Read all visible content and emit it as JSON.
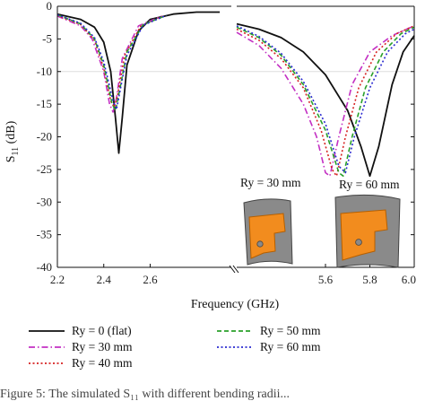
{
  "chart_data": {
    "type": "line",
    "xlabel": "Frequency (GHz)",
    "ylabel": "S",
    "ylabel_sub": "11",
    "ylabel_unit": " (dB)",
    "ylim": [
      -40,
      0
    ],
    "yticks": [
      0,
      -5,
      -10,
      -15,
      -20,
      -25,
      -30,
      -35,
      -40
    ],
    "segments": [
      {
        "xlim": [
          2.2,
          2.95
        ],
        "xticks": [
          2.2,
          2.4,
          2.6
        ],
        "tick_labels": [
          "2.2",
          "2.4",
          "2.6"
        ]
      },
      {
        "xlim": [
          5.2,
          6.0
        ],
        "xticks": [
          5.6,
          5.8,
          6.0
        ],
        "tick_labels": [
          "5.6",
          "5.8",
          "6.0"
        ]
      }
    ],
    "series": [
      {
        "name": "Ry = 0 (flat)",
        "color": "#111111",
        "dash": "solid",
        "segment1": [
          [
            2.2,
            -1.2
          ],
          [
            2.3,
            -2.0
          ],
          [
            2.36,
            -3.2
          ],
          [
            2.4,
            -5.5
          ],
          [
            2.43,
            -10.0
          ],
          [
            2.45,
            -17.0
          ],
          [
            2.465,
            -22.5
          ],
          [
            2.48,
            -17.0
          ],
          [
            2.5,
            -9.0
          ],
          [
            2.55,
            -3.8
          ],
          [
            2.6,
            -2.0
          ],
          [
            2.7,
            -1.2
          ],
          [
            2.8,
            -0.9
          ],
          [
            2.9,
            -0.9
          ]
        ],
        "segment2": [
          [
            5.2,
            -2.7
          ],
          [
            5.3,
            -3.5
          ],
          [
            5.4,
            -4.8
          ],
          [
            5.5,
            -7.0
          ],
          [
            5.6,
            -10.5
          ],
          [
            5.7,
            -16.0
          ],
          [
            5.76,
            -21.5
          ],
          [
            5.8,
            -26.0
          ],
          [
            5.84,
            -21.5
          ],
          [
            5.9,
            -12.0
          ],
          [
            5.95,
            -7.0
          ],
          [
            6.0,
            -4.5
          ]
        ]
      },
      {
        "name": "Ry = 30 mm",
        "color": "#c330c3",
        "dash": "dashdot",
        "segment1": [
          [
            2.2,
            -1.5
          ],
          [
            2.3,
            -3.0
          ],
          [
            2.35,
            -5.0
          ],
          [
            2.4,
            -10.0
          ],
          [
            2.425,
            -15.0
          ],
          [
            2.44,
            -16.2
          ],
          [
            2.455,
            -14.0
          ],
          [
            2.48,
            -8.0
          ],
          [
            2.55,
            -3.0
          ],
          [
            2.65,
            -1.5
          ]
        ],
        "segment2": [
          [
            5.2,
            -4.0
          ],
          [
            5.3,
            -6.0
          ],
          [
            5.4,
            -9.5
          ],
          [
            5.5,
            -15.0
          ],
          [
            5.56,
            -20.0
          ],
          [
            5.6,
            -25.5
          ],
          [
            5.62,
            -26.0
          ],
          [
            5.66,
            -20.0
          ],
          [
            5.72,
            -12.0
          ],
          [
            5.8,
            -7.0
          ],
          [
            5.9,
            -4.5
          ],
          [
            6.0,
            -3.0
          ]
        ]
      },
      {
        "name": "Ry = 40 mm",
        "color": "#d62222",
        "dash": "dot",
        "segment1": [
          [
            2.2,
            -1.4
          ],
          [
            2.3,
            -2.8
          ],
          [
            2.36,
            -5.2
          ],
          [
            2.4,
            -9.5
          ],
          [
            2.43,
            -14.5
          ],
          [
            2.445,
            -15.5
          ],
          [
            2.46,
            -13.5
          ],
          [
            2.49,
            -7.5
          ],
          [
            2.56,
            -3.0
          ],
          [
            2.66,
            -1.5
          ]
        ],
        "segment2": [
          [
            5.2,
            -3.5
          ],
          [
            5.3,
            -5.2
          ],
          [
            5.4,
            -8.0
          ],
          [
            5.5,
            -12.5
          ],
          [
            5.58,
            -19.0
          ],
          [
            5.63,
            -25.0
          ],
          [
            5.65,
            -26.0
          ],
          [
            5.69,
            -20.0
          ],
          [
            5.75,
            -12.5
          ],
          [
            5.83,
            -7.0
          ],
          [
            5.92,
            -4.2
          ],
          [
            6.0,
            -3.0
          ]
        ]
      },
      {
        "name": "Ry = 50 mm",
        "color": "#2aa02a",
        "dash": "dash",
        "segment1": [
          [
            2.2,
            -1.3
          ],
          [
            2.3,
            -2.7
          ],
          [
            2.36,
            -5.0
          ],
          [
            2.4,
            -9.0
          ],
          [
            2.435,
            -14.8
          ],
          [
            2.45,
            -16.0
          ],
          [
            2.465,
            -13.5
          ],
          [
            2.5,
            -7.0
          ],
          [
            2.57,
            -2.8
          ],
          [
            2.67,
            -1.4
          ]
        ],
        "segment2": [
          [
            5.2,
            -3.2
          ],
          [
            5.3,
            -4.8
          ],
          [
            5.4,
            -7.5
          ],
          [
            5.5,
            -12.0
          ],
          [
            5.6,
            -19.0
          ],
          [
            5.66,
            -25.5
          ],
          [
            5.68,
            -26.0
          ],
          [
            5.72,
            -20.0
          ],
          [
            5.78,
            -12.5
          ],
          [
            5.86,
            -7.0
          ],
          [
            5.94,
            -4.2
          ],
          [
            6.0,
            -3.2
          ]
        ]
      },
      {
        "name": "Ry = 60 mm",
        "color": "#2a2ad0",
        "dash": "dot",
        "segment1": [
          [
            2.2,
            -1.3
          ],
          [
            2.3,
            -2.6
          ],
          [
            2.36,
            -4.8
          ],
          [
            2.4,
            -8.5
          ],
          [
            2.44,
            -14.5
          ],
          [
            2.455,
            -15.8
          ],
          [
            2.47,
            -13.0
          ],
          [
            2.5,
            -7.5
          ],
          [
            2.57,
            -2.9
          ],
          [
            2.67,
            -1.4
          ]
        ],
        "segment2": [
          [
            5.2,
            -3.0
          ],
          [
            5.3,
            -4.6
          ],
          [
            5.4,
            -7.2
          ],
          [
            5.5,
            -11.5
          ],
          [
            5.6,
            -18.0
          ],
          [
            5.66,
            -24.5
          ],
          [
            5.69,
            -25.5
          ],
          [
            5.73,
            -20.0
          ],
          [
            5.8,
            -12.5
          ],
          [
            5.88,
            -7.0
          ],
          [
            5.96,
            -4.2
          ],
          [
            6.0,
            -3.5
          ]
        ]
      }
    ],
    "annotations": [
      "Ry = 30 mm",
      "Ry = 60 mm"
    ],
    "legend_position": "bottom"
  },
  "caption": "Figure 5: The simulated S₁₁ with different bending radii..."
}
